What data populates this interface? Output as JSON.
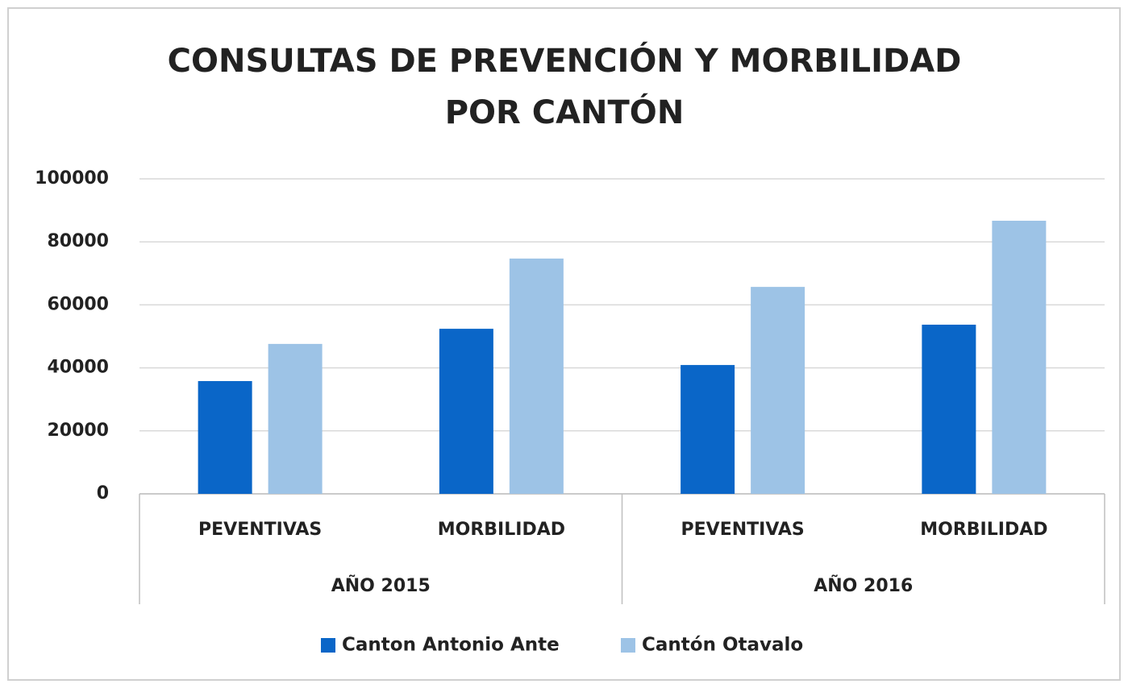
{
  "chart_data": {
    "type": "bar",
    "title": [
      "CONSULTAS DE PREVENCIÓN Y MORBILIDAD",
      "POR CANTÓN"
    ],
    "categories": [
      "PEVENTIVAS",
      "MORBILIDAD",
      "PEVENTIVAS",
      "MORBILIDAD"
    ],
    "groups": [
      "AÑO 2015",
      "AÑO 2016"
    ],
    "series": [
      {
        "name": "Canton Antonio Ante",
        "color": "#0a66c8",
        "values": [
          35800,
          52400,
          40900,
          53700
        ]
      },
      {
        "name": "Cantón Otavalo",
        "color": "#9dc3e6",
        "values": [
          47600,
          74700,
          65700,
          86700
        ]
      }
    ],
    "ylim": [
      0,
      100000
    ],
    "yticks": [
      0,
      20000,
      40000,
      60000,
      80000,
      100000
    ],
    "grid": true,
    "legend": "bottom"
  }
}
